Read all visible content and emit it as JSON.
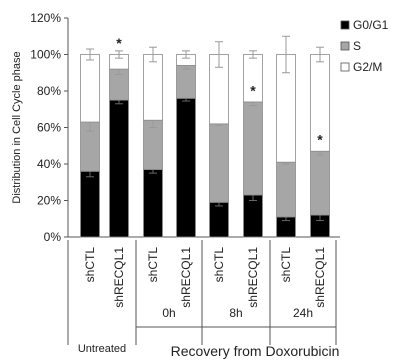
{
  "chart_data": {
    "type": "bar",
    "stacked": true,
    "ylabel": "Distribution in Cell Cycle phase",
    "ylim": [
      0,
      120
    ],
    "yticks": [
      0,
      20,
      40,
      60,
      80,
      100,
      120
    ],
    "ytick_format": "{v}%",
    "categories": [
      "shCTL",
      "shRECQL1",
      "shCTL",
      "shRECQL1",
      "shCTL",
      "shRECQL1",
      "shCTL",
      "shRECQL1"
    ],
    "groups": [
      {
        "label": "Untreated",
        "span": [
          0,
          1
        ]
      },
      {
        "label": "0h",
        "span": [
          2,
          3
        ]
      },
      {
        "label": "8h",
        "span": [
          4,
          5
        ]
      },
      {
        "label": "24h",
        "span": [
          6,
          7
        ]
      }
    ],
    "supergroup_label": "Recovery from Doxorubicin",
    "legend_position": "top-right",
    "series": [
      {
        "name": "G0/G1",
        "color": "#000000",
        "values": [
          36,
          75,
          37,
          76,
          19,
          23,
          11,
          12
        ],
        "errors": [
          3,
          2,
          2,
          1.5,
          2,
          3,
          2,
          3
        ]
      },
      {
        "name": "S",
        "color": "#a6a6a6",
        "values": [
          27,
          17,
          27,
          18,
          43,
          51,
          30,
          35
        ],
        "errors": [
          5,
          3,
          4,
          2,
          1,
          2,
          1,
          2
        ]
      },
      {
        "name": "G2/M",
        "color": "#ffffff",
        "values": [
          37,
          8,
          36,
          6,
          38,
          26,
          59,
          53
        ],
        "errors": [
          3,
          2,
          4,
          2,
          7,
          2,
          10,
          4
        ]
      }
    ],
    "significance_markers": [
      {
        "category_index": 1,
        "series": "G2/M",
        "symbol": "*"
      },
      {
        "category_index": 5,
        "series": "S",
        "symbol": "*"
      },
      {
        "category_index": 7,
        "series": "S",
        "symbol": "*"
      }
    ]
  }
}
